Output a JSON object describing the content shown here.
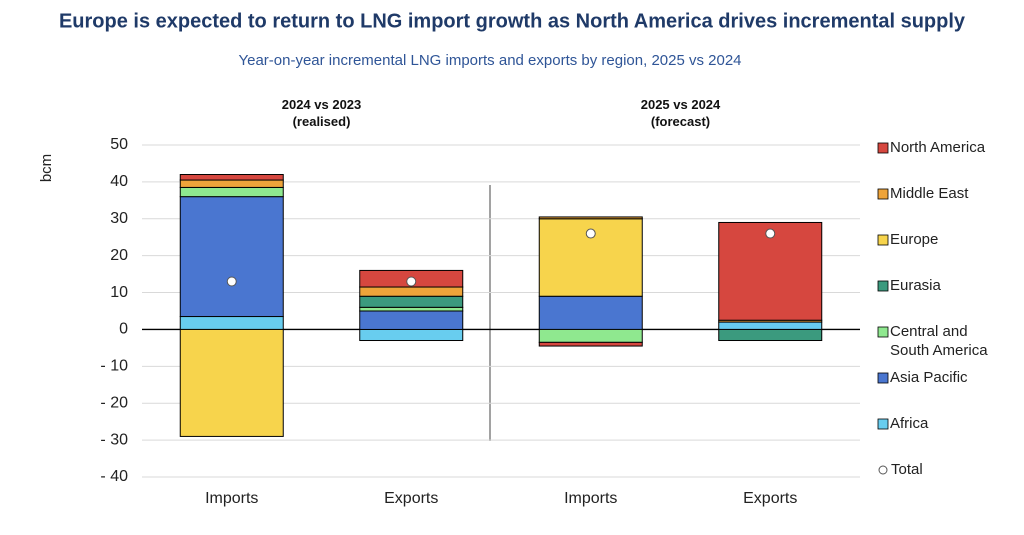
{
  "chart_data": {
    "type": "stacked_bar",
    "title": "Europe is expected to return to LNG import growth as North America drives incremental supply",
    "subtitle": "Year-on-year incremental LNG imports and exports by region, 2025 vs 2024",
    "y_label": "bcm",
    "groups": [
      {
        "label": "2024 vs 2023 (realised)",
        "categories": [
          0,
          1
        ]
      },
      {
        "label": "2025 vs 2024 (forecast)",
        "categories": [
          2,
          3
        ]
      }
    ],
    "categories": [
      "Imports",
      "Exports",
      "Imports",
      "Exports"
    ],
    "series": [
      {
        "name": "North America",
        "color": "#d6473f",
        "values": [
          1.5,
          4.5,
          -1,
          26.5
        ]
      },
      {
        "name": "Middle East",
        "color": "#eea43a",
        "values": [
          2,
          2.5,
          0.5,
          0.5
        ]
      },
      {
        "name": "Europe",
        "color": "#f7d44c",
        "values": [
          -29,
          0,
          21,
          0
        ]
      },
      {
        "name": "Eurasia",
        "color": "#3b9a7e",
        "values": [
          0,
          3,
          0,
          -3
        ]
      },
      {
        "name": "Central and South America",
        "color": "#8fe88f",
        "values": [
          2.5,
          1,
          -3.5,
          0
        ]
      },
      {
        "name": "Asia Pacific",
        "color": "#4a76d0",
        "values": [
          32.5,
          5,
          9,
          0
        ]
      },
      {
        "name": "Africa",
        "color": "#68cdef",
        "values": [
          3.5,
          -3,
          0,
          2
        ]
      }
    ],
    "total": {
      "name": "Total",
      "values": [
        13,
        13,
        26,
        26
      ]
    },
    "ylim": [
      -40,
      50
    ],
    "yticks": [
      {
        "value": -40,
        "label": "- 40"
      },
      {
        "value": -30,
        "label": "- 30"
      },
      {
        "value": -20,
        "label": "- 20"
      },
      {
        "value": -10,
        "label": "- 10"
      },
      0,
      10,
      20,
      30,
      40,
      50
    ],
    "grid": true
  }
}
